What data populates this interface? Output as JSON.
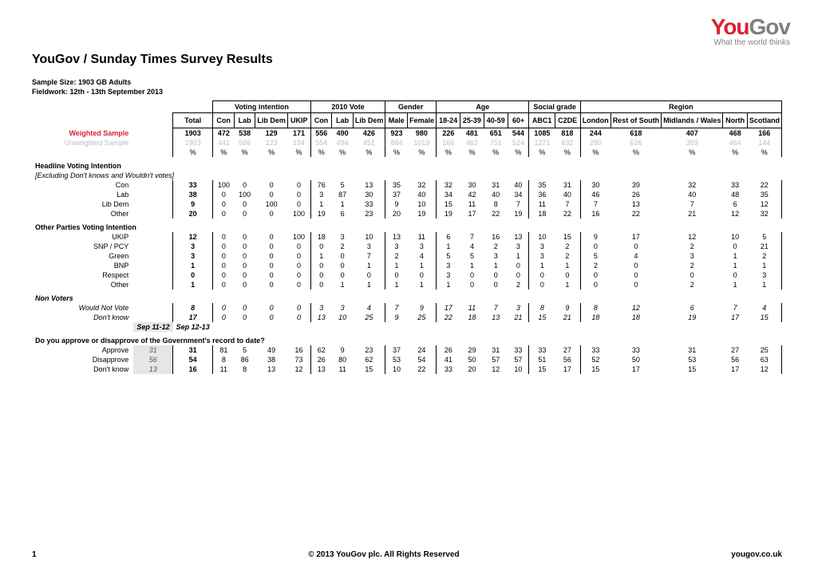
{
  "logo": {
    "you": "You",
    "gov": "Gov",
    "tagline": "What the world thinks"
  },
  "title": "YouGov / Sunday Times Survey Results",
  "meta": {
    "sample": "Sample Size: 1903 GB Adults",
    "fieldwork": "Fieldwork: 12th - 13th September 2013"
  },
  "groups": {
    "voting_intention": "Voting intention",
    "vote2010": "2010 Vote",
    "gender": "Gender",
    "age": "Age",
    "social": "Social grade",
    "region": "Region"
  },
  "columns": {
    "total": "Total",
    "con": "Con",
    "lab": "Lab",
    "libdem": "Lib Dem",
    "ukip": "UKIP",
    "con10": "Con",
    "lab10": "Lab",
    "libdem10": "Lib Dem",
    "male": "Male",
    "female": "Female",
    "a18": "18-24",
    "a25": "25-39",
    "a40": "40-59",
    "a60": "60+",
    "abc1": "ABC1",
    "c2de": "C2DE",
    "london": "London",
    "rsouth": "Rest of South",
    "midwales": "Midlands / Wales",
    "north": "North",
    "scot": "Scotland"
  },
  "weighted": {
    "label": "Weighted Sample",
    "vals": [
      "1903",
      "472",
      "538",
      "129",
      "171",
      "556",
      "490",
      "426",
      "923",
      "980",
      "226",
      "481",
      "651",
      "544",
      "1085",
      "818",
      "244",
      "618",
      "407",
      "468",
      "166"
    ]
  },
  "unweighted": {
    "label": "Unweighted Sample",
    "vals": [
      "1903",
      "441",
      "586",
      "123",
      "194",
      "554",
      "494",
      "451",
      "884",
      "1019",
      "166",
      "462",
      "751",
      "524",
      "1271",
      "632",
      "280",
      "626",
      "389",
      "464",
      "144"
    ]
  },
  "pct_label": "%",
  "sections": {
    "headline": "Headline Voting Intention",
    "headline_note": "[Excluding Don't knows and Wouldn't votes]",
    "other": "Other Parties Voting Intention",
    "nonvoters": "Non Voters",
    "approval_q": "Do you approve or disapprove of the Government's record to date?"
  },
  "prev_headers": {
    "prev": "Sep 11-12",
    "cur": "Sep 12-13"
  },
  "rows": {
    "con": {
      "label": "Con",
      "vals": [
        "33",
        "100",
        "0",
        "0",
        "0",
        "76",
        "5",
        "13",
        "35",
        "32",
        "32",
        "30",
        "31",
        "40",
        "35",
        "31",
        "30",
        "39",
        "32",
        "33",
        "22"
      ]
    },
    "lab": {
      "label": "Lab",
      "vals": [
        "38",
        "0",
        "100",
        "0",
        "0",
        "3",
        "87",
        "30",
        "37",
        "40",
        "34",
        "42",
        "40",
        "34",
        "36",
        "40",
        "46",
        "26",
        "40",
        "48",
        "35"
      ]
    },
    "libdem": {
      "label": "Lib Dem",
      "vals": [
        "9",
        "0",
        "0",
        "100",
        "0",
        "1",
        "1",
        "33",
        "9",
        "10",
        "15",
        "11",
        "8",
        "7",
        "11",
        "7",
        "7",
        "13",
        "7",
        "6",
        "12"
      ]
    },
    "oth": {
      "label": "Other",
      "vals": [
        "20",
        "0",
        "0",
        "0",
        "100",
        "19",
        "6",
        "23",
        "20",
        "19",
        "19",
        "17",
        "22",
        "19",
        "18",
        "22",
        "16",
        "22",
        "21",
        "12",
        "32"
      ]
    },
    "ukip": {
      "label": "UKIP",
      "vals": [
        "12",
        "0",
        "0",
        "0",
        "100",
        "18",
        "3",
        "10",
        "13",
        "11",
        "6",
        "7",
        "16",
        "13",
        "10",
        "15",
        "9",
        "17",
        "12",
        "10",
        "5"
      ]
    },
    "snp": {
      "label": "SNP / PCY",
      "vals": [
        "3",
        "0",
        "0",
        "0",
        "0",
        "0",
        "2",
        "3",
        "3",
        "3",
        "1",
        "4",
        "2",
        "3",
        "3",
        "2",
        "0",
        "0",
        "2",
        "0",
        "21"
      ]
    },
    "green": {
      "label": "Green",
      "vals": [
        "3",
        "0",
        "0",
        "0",
        "0",
        "1",
        "0",
        "7",
        "2",
        "4",
        "5",
        "5",
        "3",
        "1",
        "3",
        "2",
        "5",
        "4",
        "3",
        "1",
        "2"
      ]
    },
    "bnp": {
      "label": "BNP",
      "vals": [
        "1",
        "0",
        "0",
        "0",
        "0",
        "0",
        "0",
        "1",
        "1",
        "1",
        "3",
        "1",
        "1",
        "0",
        "1",
        "1",
        "2",
        "0",
        "2",
        "1",
        "1"
      ]
    },
    "respect": {
      "label": "Respect",
      "vals": [
        "0",
        "0",
        "0",
        "0",
        "0",
        "0",
        "0",
        "0",
        "0",
        "0",
        "3",
        "0",
        "0",
        "0",
        "0",
        "0",
        "0",
        "0",
        "0",
        "0",
        "3"
      ]
    },
    "oth2": {
      "label": "Other",
      "vals": [
        "1",
        "0",
        "0",
        "0",
        "0",
        "0",
        "1",
        "1",
        "1",
        "1",
        "1",
        "0",
        "0",
        "2",
        "0",
        "1",
        "0",
        "0",
        "2",
        "1",
        "1"
      ]
    },
    "wnv": {
      "label": "Would Not Vote",
      "vals": [
        "8",
        "0",
        "0",
        "0",
        "0",
        "3",
        "3",
        "4",
        "7",
        "9",
        "17",
        "11",
        "7",
        "3",
        "8",
        "9",
        "8",
        "12",
        "6",
        "7",
        "4"
      ]
    },
    "dk": {
      "label": "Don't know",
      "vals": [
        "17",
        "0",
        "0",
        "0",
        "0",
        "13",
        "10",
        "25",
        "9",
        "25",
        "22",
        "18",
        "13",
        "21",
        "15",
        "21",
        "18",
        "18",
        "19",
        "17",
        "15"
      ]
    },
    "approve": {
      "label": "Approve",
      "prev": "31",
      "vals": [
        "31",
        "81",
        "5",
        "49",
        "16",
        "62",
        "9",
        "23",
        "37",
        "24",
        "26",
        "29",
        "31",
        "33",
        "33",
        "27",
        "33",
        "33",
        "31",
        "27",
        "25"
      ]
    },
    "disapp": {
      "label": "Disapprove",
      "prev": "56",
      "vals": [
        "54",
        "8",
        "86",
        "38",
        "73",
        "26",
        "80",
        "62",
        "53",
        "54",
        "41",
        "50",
        "57",
        "57",
        "51",
        "56",
        "52",
        "50",
        "53",
        "56",
        "63"
      ]
    },
    "dk2": {
      "label": "Don't know",
      "prev": "13",
      "vals": [
        "16",
        "11",
        "8",
        "13",
        "12",
        "13",
        "11",
        "15",
        "10",
        "22",
        "33",
        "20",
        "12",
        "10",
        "15",
        "17",
        "15",
        "17",
        "15",
        "17",
        "12"
      ]
    }
  },
  "footer": {
    "page": "1",
    "copy": "© 2013 YouGov plc. All Rights Reserved",
    "url": "yougov.co.uk"
  }
}
